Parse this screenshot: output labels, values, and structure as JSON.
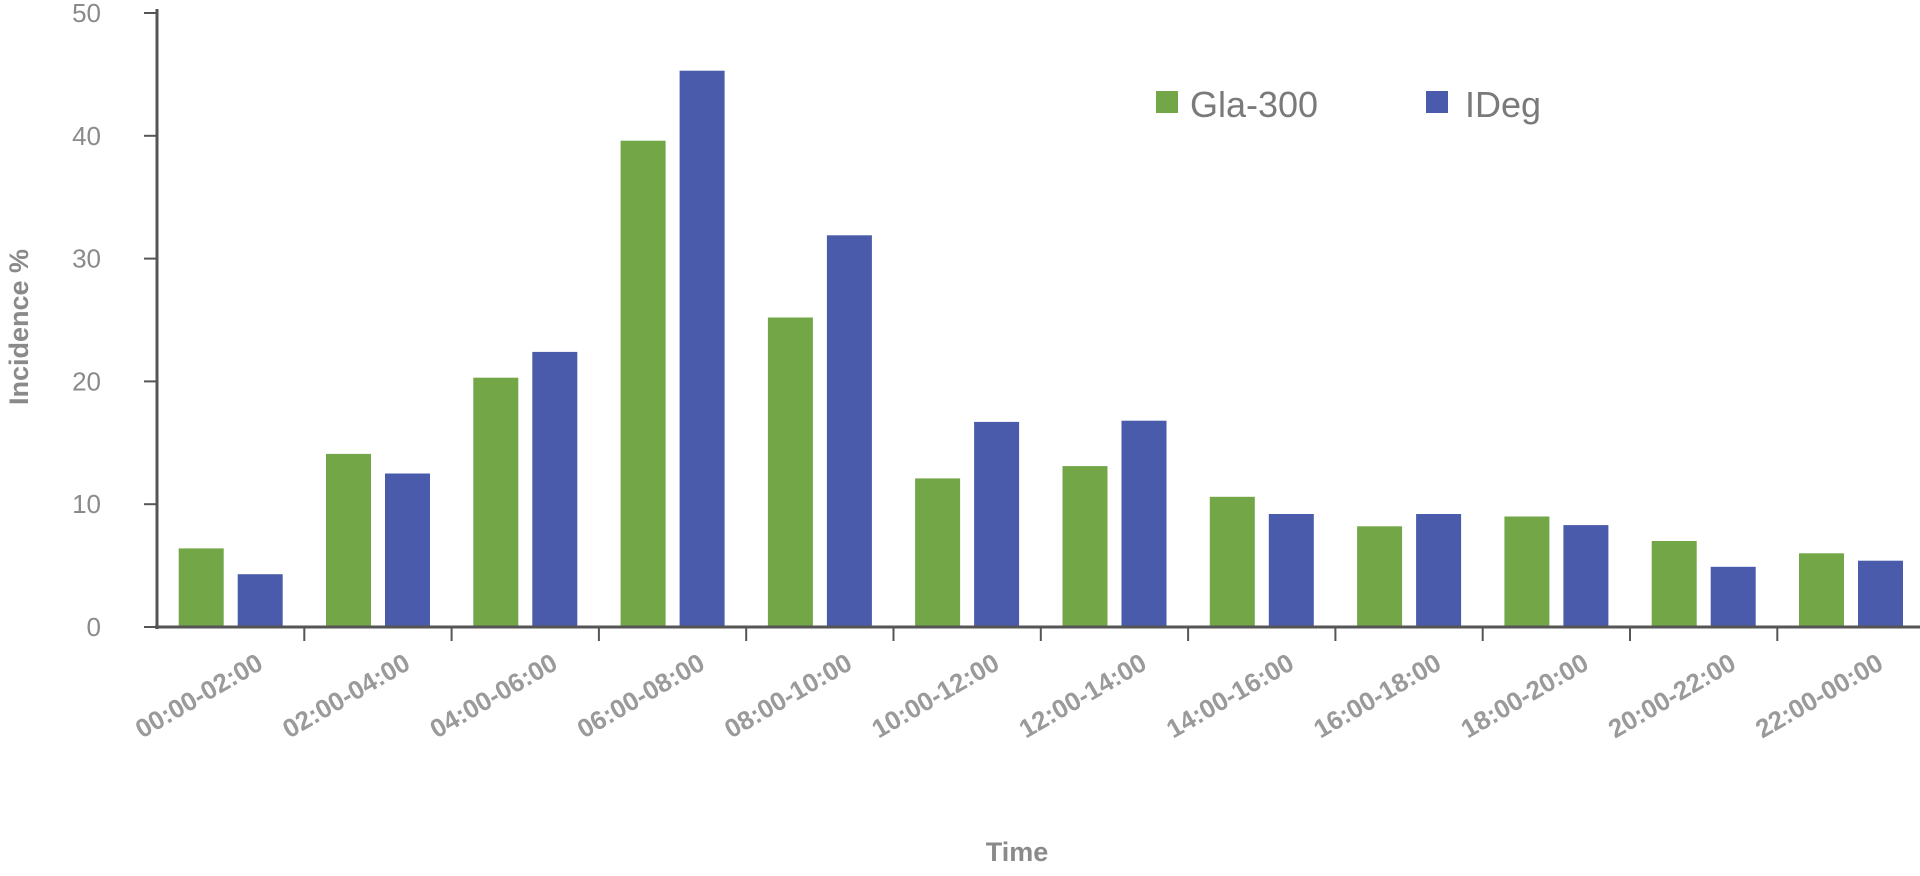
{
  "chart_data": {
    "type": "bar",
    "title": "",
    "xlabel": "Time",
    "ylabel": "Incidence %",
    "ylim": [
      0,
      50
    ],
    "yticks": [
      0,
      10,
      20,
      30,
      40,
      50
    ],
    "categories": [
      "00:00-02:00",
      "02:00-04:00",
      "04:00-06:00",
      "06:00-08:00",
      "08:00-10:00",
      "10:00-12:00",
      "12:00-14:00",
      "14:00-16:00",
      "16:00-18:00",
      "18:00-20:00",
      "20:00-22:00",
      "22:00-00:00"
    ],
    "series": [
      {
        "name": "Gla-300",
        "color": "#72a647",
        "values": [
          6.4,
          14.1,
          20.3,
          39.6,
          25.2,
          12.1,
          13.1,
          10.6,
          8.2,
          9.0,
          7.0,
          6.0
        ]
      },
      {
        "name": "IDeg",
        "color": "#4a5bab",
        "values": [
          4.3,
          12.5,
          22.4,
          45.3,
          31.9,
          16.7,
          16.8,
          9.2,
          9.2,
          8.3,
          4.9,
          5.4
        ]
      }
    ],
    "legend": "top-center",
    "grid": false
  }
}
